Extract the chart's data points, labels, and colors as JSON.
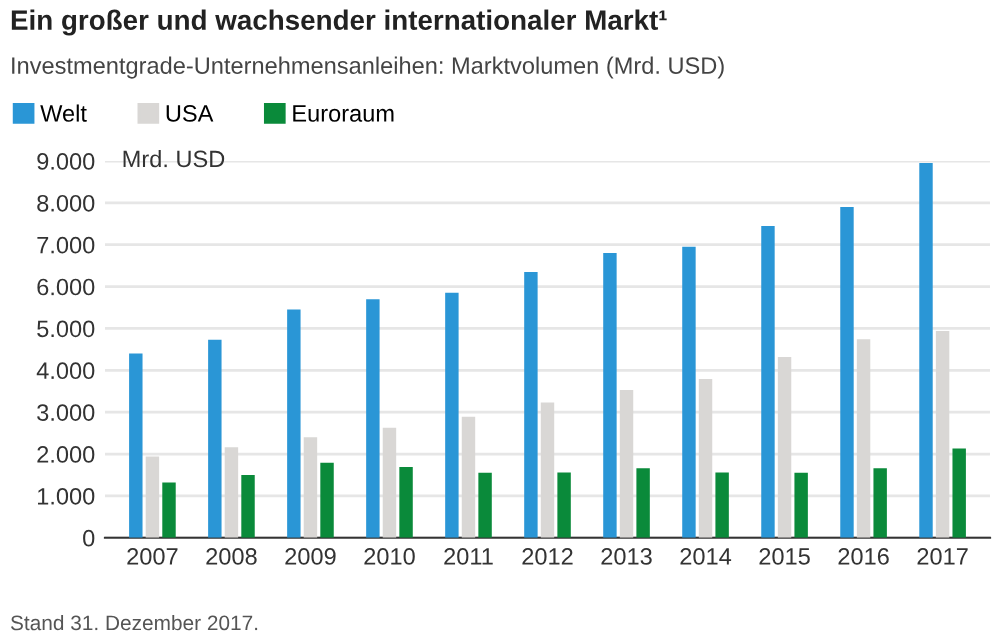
{
  "chart_data": {
    "type": "bar",
    "title": "Ein großer und wachsender internationaler Markt¹",
    "subtitle": "Investmentgrade-Unternehmensanleihen: Marktvolumen (Mrd. USD)",
    "ylabel": "Mrd. USD",
    "categories": [
      "2007",
      "2008",
      "2009",
      "2010",
      "2011",
      "2012",
      "2013",
      "2014",
      "2015",
      "2016",
      "2017"
    ],
    "series": [
      {
        "name": "Welt",
        "color": "#2a96d6",
        "values": [
          4400,
          4730,
          5450,
          5700,
          5850,
          6350,
          6800,
          6950,
          7450,
          7900,
          8950
        ]
      },
      {
        "name": "USA",
        "color": "#d9d7d5",
        "values": [
          1940,
          2160,
          2400,
          2630,
          2890,
          3230,
          3530,
          3790,
          4320,
          4740,
          4940
        ]
      },
      {
        "name": "Euroraum",
        "color": "#0a8a3a",
        "values": [
          1320,
          1500,
          1790,
          1690,
          1550,
          1560,
          1660,
          1560,
          1550,
          1660,
          2130
        ]
      }
    ],
    "ylim": [
      0,
      9000
    ],
    "yticks": [
      {
        "value": 0,
        "label": "0"
      },
      {
        "value": 1000,
        "label": "1.000"
      },
      {
        "value": 2000,
        "label": "2.000"
      },
      {
        "value": 3000,
        "label": "3.000"
      },
      {
        "value": 4000,
        "label": "4.000"
      },
      {
        "value": 5000,
        "label": "5.000"
      },
      {
        "value": 6000,
        "label": "6.000"
      },
      {
        "value": 7000,
        "label": "7.000"
      },
      {
        "value": 8000,
        "label": "8.000"
      },
      {
        "value": 9000,
        "label": "9.000"
      }
    ],
    "grid": "y",
    "legend": "top left",
    "annotations": [
      "Stand 31. Dezember 2017."
    ]
  }
}
